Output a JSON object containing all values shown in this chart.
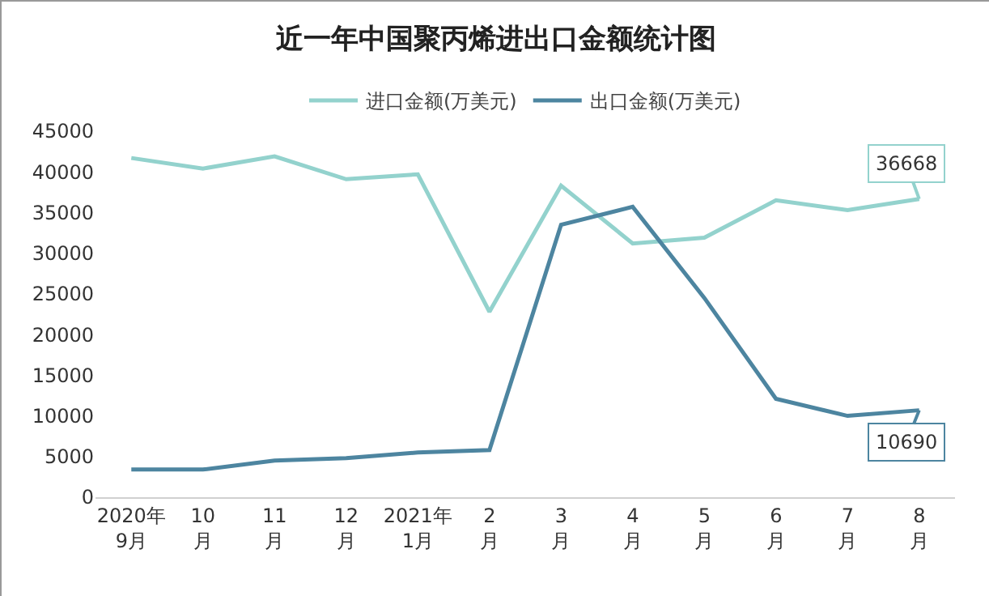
{
  "chart_data": {
    "type": "line",
    "title": "近一年中国聚丙烯进出口金额统计图",
    "categories": [
      "2020年\n9月",
      "10\n月",
      "11\n月",
      "12\n月",
      "2021年\n1月",
      "2\n月",
      "3\n月",
      "4\n月",
      "5\n月",
      "6\n月",
      "7\n月",
      "8\n月"
    ],
    "series": [
      {
        "name": "进口金额(万美元)",
        "color": "#93d2cd",
        "values": [
          41700,
          40400,
          41900,
          39100,
          39700,
          22800,
          38300,
          31200,
          31900,
          36500,
          35300,
          36668
        ],
        "value_labels": [
          null,
          null,
          null,
          null,
          null,
          null,
          null,
          null,
          null,
          null,
          null,
          "36668"
        ]
      },
      {
        "name": "出口金额(万美元)",
        "color": "#4d85a0",
        "values": [
          3400,
          3400,
          4500,
          4800,
          5500,
          5800,
          33500,
          35700,
          24500,
          12100,
          10000,
          10690
        ],
        "value_labels": [
          null,
          null,
          null,
          null,
          null,
          null,
          null,
          null,
          null,
          null,
          null,
          "10690"
        ]
      }
    ],
    "ylim": [
      0,
      45000
    ],
    "yticks": [
      0,
      5000,
      10000,
      15000,
      20000,
      25000,
      30000,
      35000,
      40000,
      45000
    ],
    "grid": false,
    "legend": "top",
    "marker": "none",
    "line_style": "solid"
  }
}
